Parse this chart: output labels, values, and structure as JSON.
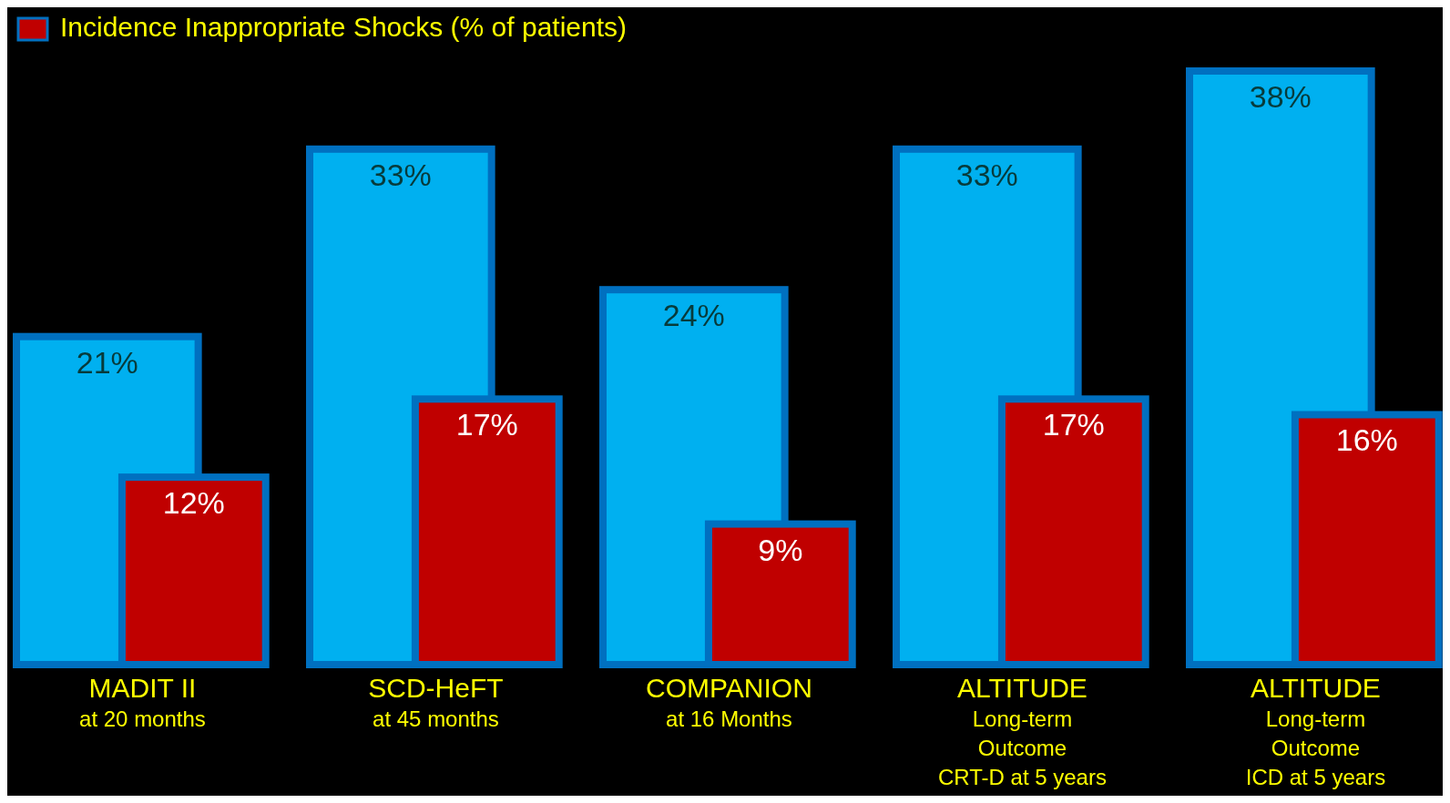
{
  "chart_data": {
    "type": "bar",
    "categories": [
      "MADIT II\nat 20 months",
      "SCD-HeFT\nat 45 months",
      "COMPANION\nat 16 Months",
      "ALTITUDE\nLong-term\nOutcome\nCRT-D at 5 years",
      "ALTITUDE\nLong-term\nOutcome\nICD at 5 years"
    ],
    "series": [
      {
        "color": "#00b0f0",
        "values": [
          21,
          33,
          24,
          33,
          38
        ],
        "value_labels": [
          "21%",
          "33%",
          "24%",
          "33%",
          "38%"
        ]
      },
      {
        "name": "Incidence Inappropriate Shocks (% of patients)",
        "color": "#c00000",
        "values": [
          12,
          17,
          9,
          17,
          16
        ],
        "value_labels": [
          "12%",
          "17%",
          "9%",
          "17%",
          "16%"
        ]
      }
    ],
    "legend": "top left"
  }
}
